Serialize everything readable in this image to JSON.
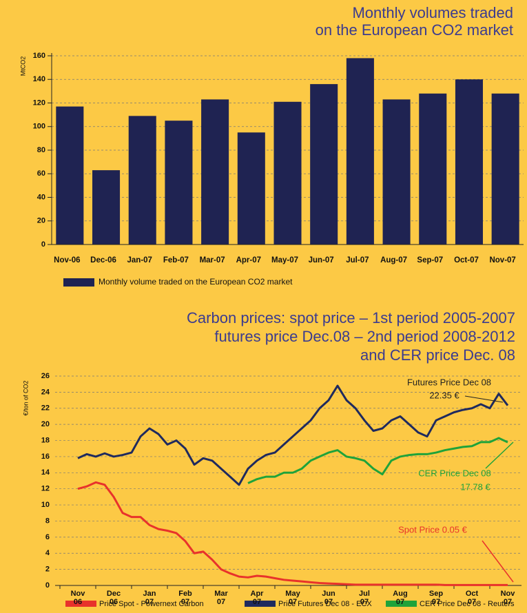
{
  "chart_data": [
    {
      "type": "bar",
      "title": [
        "Monthly volumes traded",
        "on the European CO2 market"
      ],
      "y_label": "MtCO2",
      "categories": [
        "Nov-06",
        "Dec-06",
        "Jan-07",
        "Feb-07",
        "Mar-07",
        "Apr-07",
        "May-07",
        "Jun-07",
        "Jul-07",
        "Aug-07",
        "Sep-07",
        "Oct-07",
        "Nov-07"
      ],
      "series": [
        {
          "name": "Monthly volume traded on the European CO2 market",
          "color": "#1f2352",
          "values": [
            117,
            63,
            109,
            105,
            123,
            95,
            121,
            136,
            158,
            123,
            128,
            140,
            128
          ]
        }
      ],
      "ylim": [
        0,
        160
      ],
      "yticks": [
        0,
        20,
        40,
        60,
        80,
        100,
        120,
        140,
        160
      ],
      "grid": true
    },
    {
      "type": "line",
      "title": [
        "Carbon prices: spot price – 1st period 2005-2007",
        "futures price Dec.08 – 2nd period 2008-2012",
        "and CER price Dec. 08"
      ],
      "y_label": "€/ton of CO2",
      "categories": [
        "Nov\n06",
        null,
        null,
        null,
        "Dec\n06",
        null,
        null,
        null,
        "Jan\n07",
        null,
        null,
        null,
        "Feb\n07",
        null,
        null,
        null,
        "Mar\n07",
        null,
        null,
        null,
        "Apr\n07",
        null,
        null,
        null,
        "May\n07",
        null,
        null,
        null,
        "Jun\n07",
        null,
        null,
        null,
        "Jul\n07",
        null,
        null,
        null,
        "Aug\n07",
        null,
        null,
        null,
        "Sep\n07",
        null,
        null,
        null,
        "Oct\n07",
        null,
        null,
        null,
        "Nov\n07"
      ],
      "series": [
        {
          "name": "Price Spot - Powernext Carbon",
          "color": "#e8322b",
          "values": [
            12.0,
            12.3,
            12.8,
            12.5,
            11.0,
            9.0,
            8.5,
            8.5,
            7.5,
            7.0,
            6.8,
            6.5,
            5.5,
            4.0,
            4.2,
            3.2,
            2.0,
            1.5,
            1.1,
            1.0,
            1.2,
            1.1,
            0.9,
            0.7,
            0.6,
            0.5,
            0.4,
            0.3,
            0.25,
            0.2,
            0.15,
            0.1,
            0.1,
            0.1,
            0.1,
            0.1,
            0.1,
            0.1,
            0.1,
            0.1,
            0.1,
            0.05,
            0.05,
            0.05,
            0.05,
            0.05,
            0.05,
            0.05,
            0.05
          ]
        },
        {
          "name": "Price Futures Dec 08 - ECX",
          "color": "#1f2a5e",
          "values": [
            15.8,
            16.3,
            16.0,
            16.4,
            16.0,
            16.2,
            16.5,
            18.5,
            19.5,
            18.8,
            17.5,
            18.0,
            17.0,
            15.0,
            15.8,
            15.5,
            14.5,
            13.5,
            12.5,
            14.5,
            15.5,
            16.2,
            16.5,
            17.5,
            18.5,
            19.5,
            20.5,
            22.0,
            23.0,
            24.8,
            23.0,
            22.0,
            20.5,
            19.2,
            19.5,
            20.5,
            21.0,
            20.0,
            19.0,
            18.5,
            20.5,
            21.0,
            21.5,
            21.8,
            22.0,
            22.5,
            22.0,
            23.8,
            22.35
          ]
        },
        {
          "name": "CER Price Dec 08 - Reuters",
          "color": "#1fa33a",
          "values": [
            null,
            null,
            null,
            null,
            null,
            null,
            null,
            null,
            null,
            null,
            null,
            null,
            null,
            null,
            null,
            null,
            null,
            null,
            null,
            12.7,
            13.2,
            13.5,
            13.5,
            14.0,
            14.0,
            14.5,
            15.5,
            16.0,
            16.5,
            16.8,
            16.0,
            15.8,
            15.5,
            14.5,
            13.8,
            15.5,
            16.0,
            16.2,
            16.3,
            16.3,
            16.5,
            16.8,
            17.0,
            17.2,
            17.3,
            17.8,
            17.8,
            18.3,
            17.78
          ]
        }
      ],
      "annotations": [
        "Futures Price Dec 08",
        "22.35 €",
        "CER Price Dec 08",
        "17.78 €",
        "Spot Price 0.05 €"
      ],
      "ylim": [
        0,
        26
      ],
      "yticks": [
        0,
        2,
        4,
        6,
        8,
        10,
        12,
        14,
        16,
        18,
        20,
        22,
        24,
        26
      ],
      "grid": true
    }
  ]
}
